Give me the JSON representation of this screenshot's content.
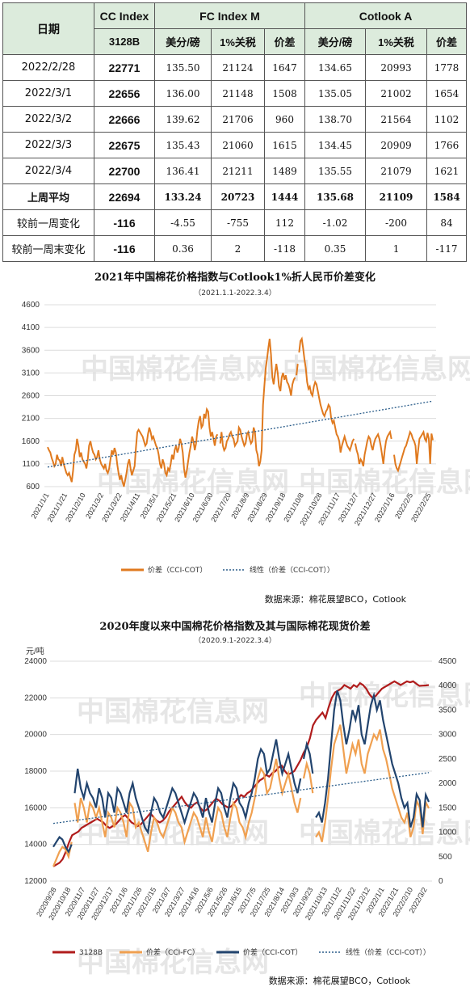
{
  "table": {
    "header_row1": {
      "date_label": "日期",
      "cc_label": "CC Index",
      "fc_label": "FC Index M",
      "cot_label": "Cotlook A"
    },
    "header_row2": [
      "3128B",
      "美分/磅",
      "1%关税",
      "价差",
      "美分/磅",
      "1%关税",
      "价差"
    ],
    "rows": [
      {
        "date": "2022/2/28",
        "cc": "22771",
        "fc_cents": "135.50",
        "fc_tariff": "21124",
        "fc_diff": "1647",
        "cot_cents": "134.65",
        "cot_tariff": "20993",
        "cot_diff": "1778"
      },
      {
        "date": "2022/3/1",
        "cc": "22656",
        "fc_cents": "136.00",
        "fc_tariff": "21148",
        "fc_diff": "1508",
        "cot_cents": "135.05",
        "cot_tariff": "21002",
        "cot_diff": "1654"
      },
      {
        "date": "2022/3/2",
        "cc": "22666",
        "fc_cents": "139.62",
        "fc_tariff": "21706",
        "fc_diff": "960",
        "cot_cents": "138.70",
        "cot_tariff": "21564",
        "cot_diff": "1102"
      },
      {
        "date": "2022/3/3",
        "cc": "22675",
        "fc_cents": "135.43",
        "fc_tariff": "21060",
        "fc_diff": "1615",
        "cot_cents": "134.45",
        "cot_tariff": "20909",
        "cot_diff": "1766"
      },
      {
        "date": "2022/3/4",
        "cc": "22700",
        "fc_cents": "136.41",
        "fc_tariff": "21211",
        "fc_diff": "1489",
        "cot_cents": "135.55",
        "cot_tariff": "21079",
        "cot_diff": "1621"
      },
      {
        "date": "上周平均",
        "cc": "22694",
        "fc_cents": "133.24",
        "fc_tariff": "20723",
        "fc_diff": "1444",
        "cot_cents": "135.68",
        "cot_tariff": "21109",
        "cot_diff": "1584"
      },
      {
        "date": "较前一周变化",
        "cc": "-116",
        "fc_cents": "-4.55",
        "fc_tariff": "-755",
        "fc_diff": "112",
        "cot_cents": "-1.02",
        "cot_tariff": "-200",
        "cot_diff": "84"
      },
      {
        "date": "较前一周末变化",
        "cc": "-116",
        "fc_cents": "0.36",
        "fc_tariff": "2",
        "fc_diff": "-118",
        "cot_cents": "0.35",
        "cot_tariff": "1",
        "cot_diff": "-117"
      }
    ]
  },
  "watermark": {
    "brand": "中国棉花信息网",
    "url": "www.cottonchina.org.cn"
  },
  "chart_data": [
    {
      "type": "line",
      "title": "2021年中国棉花价格指数与Cotlook1%折人民币价差变化",
      "subtitle": "（2021.1.1-2022.3.4）",
      "source": "数据来源：棉花展望BCO，Cotlook",
      "ylim": [
        600,
        4600
      ],
      "yticks": [
        "600",
        "1100",
        "1600",
        "2100",
        "2600",
        "3100",
        "3600",
        "4100",
        "4600"
      ],
      "x_tick_labels": [
        "2021/1/1",
        "2021/1/21",
        "2021/2/10",
        "2021/3/2",
        "2021/3/22",
        "2021/4/11",
        "2021/5/1",
        "2021/5/21",
        "2021/6/10",
        "2021/6/30",
        "2021/7/20",
        "2021/8/9",
        "2021/8/29",
        "2021/9/18",
        "2021/10/8",
        "2021/10/28",
        "2021/11/17",
        "2021/12/7",
        "2021/12/27",
        "2022/1/16",
        "2022/2/5",
        "2022/2/25"
      ],
      "series": [
        {
          "name": "价差（CCI-COT）",
          "color": "#e07a1f",
          "style": "solid",
          "values": [
            1470,
            1400,
            1350,
            1230,
            1150,
            1050,
            1100,
            1300,
            1200,
            1180,
            1050,
            1250,
            1100,
            1000,
            900,
            850,
            900,
            800,
            700,
            950,
            1300,
            1400,
            1650,
            1500,
            1250,
            1350,
            1200,
            1150,
            1100,
            1000,
            1200,
            1500,
            1600,
            1450,
            1350,
            1300,
            1200,
            1250,
            1400,
            1200,
            1100,
            1050,
            1000,
            1100,
            950,
            900,
            1000,
            1200,
            1400,
            1300,
            1450,
            1350,
            1100,
            900,
            750,
            850,
            700,
            600,
            750,
            900,
            1100,
            1200,
            1000,
            850,
            950,
            1050,
            1450,
            1800,
            1850,
            1800,
            1750,
            1700,
            1600,
            1500,
            1550,
            1750,
            1900,
            1800,
            1650,
            1700,
            1600,
            1500,
            1450,
            1300,
            1100,
            1000,
            1200,
            1100,
            900,
            850,
            1000,
            950,
            1100,
            1300,
            1200,
            1400,
            1500,
            1350,
            1450,
            1650,
            1550,
            1350,
            1000,
            800,
            950,
            1150,
            1350,
            1500,
            1700,
            1600,
            1400,
            1550,
            1850,
            2050,
            2150,
            1900,
            1950,
            2200,
            2100,
            2300,
            2250,
            1900,
            1700,
            1800,
            1650,
            1500,
            1700,
            1750,
            1650,
            1550,
            1800,
            1500,
            1400,
            1450,
            1600,
            1650,
            1750,
            1800,
            1700,
            1650,
            1500,
            1550,
            1600,
            1900,
            1850,
            1700,
            1600,
            1500,
            1550,
            1750,
            1800,
            1650,
            1550,
            1600,
            1900,
            1800,
            1400,
            1300,
            1050,
            1150,
            1400,
            2400,
            2800,
            3200,
            3400,
            3650,
            3850,
            3500,
            3000,
            2850,
            3100,
            3300,
            3100,
            2800,
            2700,
            3000,
            3100,
            2950,
            3050,
            2900,
            2850,
            2750,
            2600,
            2850,
            2950,
            3000,
            3050,
            3300,
            3550,
            3800,
            3850,
            3650,
            3400,
            3200,
            2900,
            2750,
            2800,
            2650,
            2600,
            2800,
            2900,
            2850,
            2700,
            2550,
            2400,
            2300,
            2200,
            2150,
            2250,
            2300,
            2400,
            2350,
            2100,
            2000,
            2050,
            1900,
            1750,
            1700,
            1600,
            1350,
            1500,
            1600,
            1700,
            1600,
            1500,
            1450,
            1400,
            1500,
            1600,
            1650,
            1550,
            1400,
            1300,
            1100,
            1200,
            1150,
            1050,
            1300,
            1450,
            1600,
            1700,
            1650,
            1500,
            1400,
            1550,
            1650,
            1700,
            1750,
            1650,
            1500,
            1300,
            1100,
            1400,
            1600,
            1700,
            1750,
            1800,
            1650,
            1500,
            1300,
            1100,
            1000,
            950,
            1050,
            1150,
            1250,
            1350,
            1450,
            1500,
            1600,
            1700,
            1800,
            1750,
            1650,
            1600,
            1500,
            1100,
            1400,
            1650,
            1700,
            1750,
            1800,
            1650,
            1600,
            1780,
            1654,
            1102,
            1766,
            1621
          ]
        },
        {
          "name": "线性（价差（CCI-COT））",
          "color": "#2b5d8a",
          "style": "dotted",
          "values": [
            1030,
            2480
          ]
        }
      ],
      "legend": [
        "价差（CCI-COT）",
        "线性（价差（CCI-COT））"
      ],
      "legend_position": "bottom"
    },
    {
      "type": "line",
      "title": "2020年度以来中国棉花价格指数及其与国际棉花现货价差",
      "subtitle": "（2020.9.1-2022.3.4）",
      "unit_label": "元/吨",
      "source": "数据来源：棉花展望BCO，Cotlook",
      "y_left": {
        "ylim": [
          12000,
          24000
        ],
        "ticks": [
          "12000",
          "14000",
          "16000",
          "18000",
          "20000",
          "22000",
          "24000"
        ]
      },
      "y_right": {
        "ylim": [
          0,
          4500
        ],
        "ticks": [
          "0",
          "500",
          "1000",
          "1500",
          "2000",
          "2500",
          "3000",
          "3500",
          "4000",
          "4500"
        ]
      },
      "x_tick_labels": [
        "2020/9/28",
        "2020/10/18",
        "2020/11/7",
        "2020/11/27",
        "2020/12/17",
        "2021/1/6",
        "2021/1/26",
        "2021/2/15",
        "2021/3/7",
        "2021/3/27",
        "2021/4/16",
        "2021/5/6",
        "2021/5/26",
        "2021/6/15",
        "2021/7/5",
        "2021/7/25",
        "2021/8/14",
        "2021/9/3",
        "2021/9/23",
        "2021/10/13",
        "2021/11/2",
        "2021/11/22",
        "2021/12/12",
        "2022/1/1",
        "2022/1/21",
        "2022/2/10",
        "2022/3/2"
      ],
      "series": [
        {
          "name": "3128B",
          "axis": "left",
          "color": "#b01c1c",
          "style": "solid",
          "values": [
            12800,
            12900,
            13000,
            13200,
            13600,
            14100,
            14500,
            14600,
            14700,
            14900,
            15000,
            15100,
            15200,
            15300,
            15400,
            15300,
            15200,
            15000,
            14900,
            15000,
            15100,
            15300,
            15500,
            15600,
            15400,
            15200,
            15100,
            15000,
            15100,
            15300,
            15500,
            15700,
            15500,
            15300,
            15200,
            15300,
            15500,
            15800,
            16000,
            16200,
            16400,
            16600,
            16300,
            16100,
            16000,
            16200,
            16300,
            16000,
            15800,
            15900,
            16100,
            16300,
            16500,
            16400,
            16200,
            16100,
            16000,
            16100,
            16300,
            16500,
            16700,
            16600,
            16800,
            16900,
            17100,
            17300,
            17500,
            17600,
            17800,
            17700,
            17900,
            18000,
            18200,
            18300,
            18000,
            17800,
            17900,
            18000,
            18300,
            18600,
            19000,
            19300,
            19800,
            20500,
            20800,
            21000,
            21200,
            20900,
            21500,
            22000,
            22300,
            22400,
            22500,
            22700,
            22600,
            22500,
            22700,
            22600,
            22800,
            22700,
            22500,
            22200,
            22000,
            22100,
            22300,
            22500,
            22600,
            22700,
            22800,
            22900,
            22800,
            22700,
            22800,
            22900,
            22850,
            22900,
            22771,
            22656,
            22666,
            22675,
            22700
          ]
        },
        {
          "name": "价差（CCI-FC）",
          "axis": "right",
          "color": "#f0a050",
          "style": "solid",
          "values": [
            300,
            450,
            600,
            700,
            650,
            500,
            800,
            1600,
            1200,
            1700,
            1500,
            1200,
            1600,
            1500,
            1300,
            1500,
            1200,
            900,
            1400,
            1300,
            1100,
            1500,
            1400,
            1200,
            900,
            1600,
            1500,
            1100,
            1200,
            1000,
            800,
            600,
            1000,
            1300,
            1200,
            1000,
            900,
            1100,
            1300,
            1500,
            1400,
            1200,
            1100,
            800,
            1000,
            1200,
            1400,
            1300,
            1100,
            900,
            1300,
            1000,
            800,
            1200,
            1500,
            1400,
            1100,
            900,
            1300,
            1600,
            1500,
            1200,
            1100,
            900,
            1200,
            1400,
            1700,
            2100,
            2300,
            2200,
            1800,
            1900,
            2200,
            2500,
            2100,
            1800,
            2000,
            2200,
            1900,
            1600,
            1400,
            1700,
            2100,
            2400,
            2200,
            1800,
            900,
            1000,
            800,
            1200,
            1700,
            2300,
            2800,
            3000,
            3200,
            2700,
            2200,
            2500,
            2800,
            2600,
            2900,
            2400,
            2200,
            2600,
            2800,
            3000,
            2900,
            3100,
            2700,
            2500,
            2200,
            1900,
            1700,
            1500,
            1300,
            1200,
            1400,
            900,
            1100,
            1647,
            1508,
            960,
            1615,
            1489
          ]
        },
        {
          "name": "价差（CCI-COT）",
          "axis": "right",
          "color": "#22446e",
          "style": "solid",
          "values": [
            700,
            800,
            900,
            850,
            700,
            600,
            750,
            1800,
            2300,
            1900,
            1700,
            2000,
            1800,
            1700,
            1500,
            1900,
            1700,
            1300,
            1800,
            1700,
            1400,
            1900,
            1800,
            1600,
            1400,
            1800,
            2000,
            1700,
            1500,
            1300,
            1100,
            1000,
            1400,
            1700,
            1600,
            1400,
            1300,
            1500,
            1700,
            1900,
            1800,
            1600,
            1400,
            1200,
            1400,
            1600,
            1800,
            1700,
            1500,
            1300,
            1700,
            1400,
            1200,
            1600,
            1900,
            1800,
            1500,
            1300,
            1700,
            2000,
            1900,
            1600,
            1500,
            1300,
            1600,
            1800,
            2100,
            2500,
            2700,
            2600,
            2200,
            2300,
            2600,
            2900,
            2500,
            2200,
            2400,
            2600,
            2300,
            2000,
            1800,
            2100,
            2500,
            2800,
            2600,
            2200,
            1300,
            1400,
            1200,
            1600,
            2100,
            2800,
            3500,
            3900,
            3700,
            3200,
            2800,
            3100,
            3500,
            3300,
            3600,
            3000,
            2800,
            3200,
            3600,
            3800,
            3500,
            3700,
            3300,
            3000,
            2700,
            2400,
            2200,
            2000,
            1700,
            1500,
            1600,
            1100,
            1300,
            1778,
            1654,
            1102,
            1766,
            1621
          ]
        },
        {
          "name": "线性（价差（CCI-COT））",
          "axis": "right",
          "color": "#2b5d8a",
          "style": "dotted",
          "values": [
            1180,
            2220
          ]
        }
      ],
      "legend": [
        "3128B",
        "价差（CCI-FC）",
        "价差（CCI-COT）",
        "线性（价差（CCI-COT））"
      ],
      "legend_position": "bottom"
    }
  ]
}
